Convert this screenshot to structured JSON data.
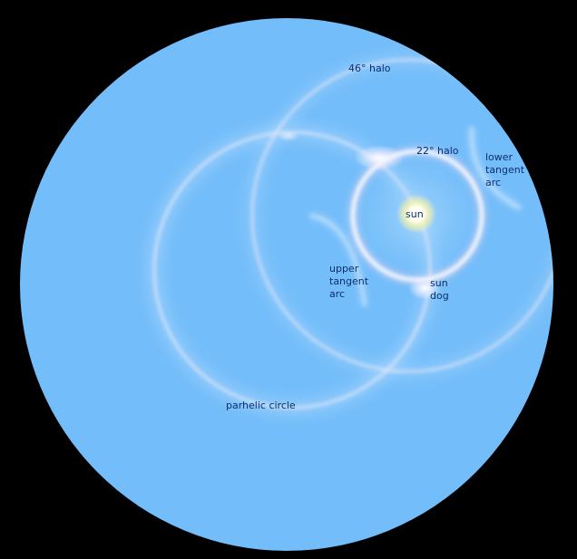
{
  "colors": {
    "sky": "#73bdfa",
    "background": "#000000",
    "label": "#0d2e6b",
    "halo_glow": "#fff3f8",
    "sun": "#fffbd0"
  },
  "labels": {
    "halo_46": "46° halo",
    "halo_22": "22° halo",
    "lower_tangent_arc": "lower\ntangent\narc",
    "sun": "sun",
    "upper_tangent_arc": "upper\ntangent\narc",
    "sun_dog": "sun\ndog",
    "parhelic_circle": "parhelic circle"
  }
}
